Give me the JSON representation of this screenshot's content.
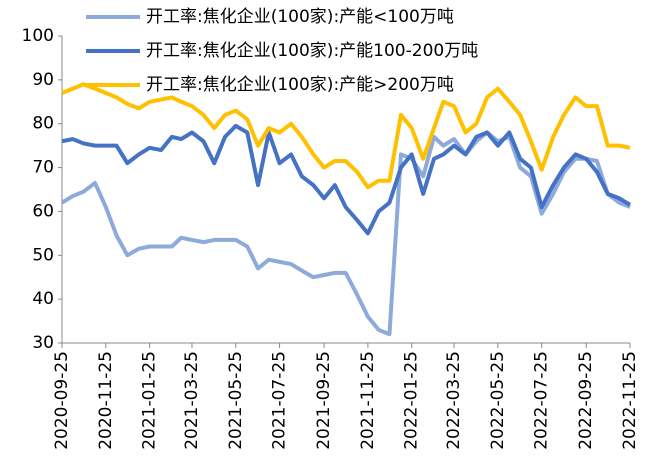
{
  "chart_data": {
    "type": "line",
    "x": [
      "2020-09-25",
      "2020-10-10",
      "2020-10-25",
      "2020-11-10",
      "2020-11-25",
      "2020-12-10",
      "2020-12-25",
      "2021-01-10",
      "2021-01-25",
      "2021-02-10",
      "2021-02-25",
      "2021-03-10",
      "2021-03-25",
      "2021-04-10",
      "2021-04-25",
      "2021-05-10",
      "2021-05-25",
      "2021-06-10",
      "2021-06-25",
      "2021-07-10",
      "2021-07-25",
      "2021-08-10",
      "2021-08-25",
      "2021-09-10",
      "2021-09-25",
      "2021-10-10",
      "2021-10-25",
      "2021-11-10",
      "2021-11-25",
      "2021-12-10",
      "2021-12-25",
      "2022-01-10",
      "2022-01-25",
      "2022-02-10",
      "2022-02-25",
      "2022-03-10",
      "2022-03-25",
      "2022-04-10",
      "2022-04-25",
      "2022-05-10",
      "2022-05-25",
      "2022-06-10",
      "2022-06-25",
      "2022-07-10",
      "2022-07-25",
      "2022-08-10",
      "2022-08-25",
      "2022-09-10",
      "2022-09-25",
      "2022-10-10",
      "2022-10-25",
      "2022-11-10",
      "2022-11-25"
    ],
    "series": [
      {
        "name": "开工率:焦化企业(100家):产能<100万吨",
        "color": "#8eaadb",
        "values": [
          62,
          63.5,
          64.5,
          66.5,
          61,
          54.5,
          50,
          51.5,
          52,
          52,
          52,
          54,
          53.5,
          53,
          53.5,
          53.5,
          53.5,
          52,
          47,
          49,
          48.5,
          48,
          46.5,
          45,
          45.5,
          46,
          46,
          41,
          36,
          33,
          32,
          73,
          72,
          68,
          77,
          75,
          76.5,
          73,
          76,
          78,
          76,
          77,
          70,
          68,
          59.5,
          64,
          69,
          72,
          72,
          71.5,
          64,
          62,
          61
        ]
      },
      {
        "name": "开工率:焦化企业(100家):产能100-200万吨",
        "color": "#4472c4",
        "values": [
          76,
          76.5,
          75.5,
          75,
          75,
          75,
          71,
          73,
          74.5,
          74,
          77,
          76.5,
          78,
          76,
          71,
          77,
          79.5,
          78,
          66,
          78,
          71,
          73,
          68,
          66,
          63,
          66,
          61,
          58,
          55,
          60,
          62,
          70,
          73,
          64,
          72,
          73,
          75,
          73,
          77,
          78,
          75,
          78,
          72,
          70,
          61,
          66,
          70,
          73,
          72,
          69,
          64,
          63,
          61.5
        ]
      },
      {
        "name": "开工率:焦化企业(100家):产能>200万吨",
        "color": "#ffc000",
        "values": [
          87,
          88,
          89,
          88,
          87,
          86,
          84.5,
          83.5,
          85,
          85.5,
          86,
          85,
          84,
          82,
          79,
          82,
          83,
          81,
          75,
          79,
          78,
          80,
          77,
          73,
          70,
          71.5,
          71.5,
          69,
          65.5,
          67,
          67,
          82,
          79,
          72,
          79,
          85,
          84,
          78,
          80,
          86,
          88,
          85,
          82,
          76,
          69.5,
          77,
          82,
          86,
          84,
          84,
          75,
          75,
          74.5
        ]
      }
    ],
    "xticks": [
      "2020-09-25",
      "2020-11-25",
      "2021-01-25",
      "2021-03-25",
      "2021-05-25",
      "2021-07-25",
      "2021-09-25",
      "2021-11-25",
      "2022-01-25",
      "2022-03-25",
      "2022-05-25",
      "2022-07-25",
      "2022-09-25",
      "2022-11-25"
    ],
    "ylim": [
      30,
      100
    ],
    "yticks": [
      30,
      40,
      50,
      60,
      70,
      80,
      90,
      100
    ],
    "grid": false,
    "legend": "top-left"
  }
}
